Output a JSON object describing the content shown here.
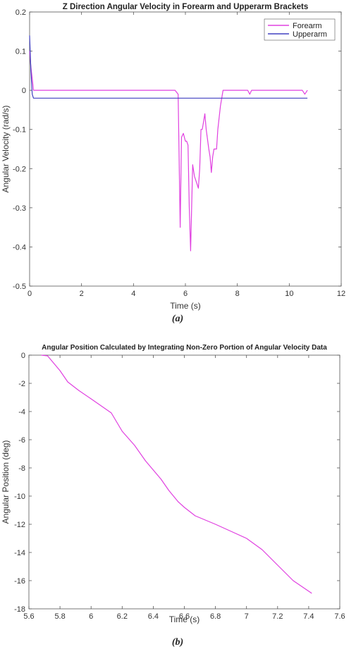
{
  "chart_data": [
    {
      "type": "line",
      "title": "Z Direction Angular Velocity in Forearm and Upperarm Brackets",
      "xlabel": "Time (s)",
      "ylabel": "Angular Velocity (rad/s)",
      "xlim": [
        0,
        12
      ],
      "ylim": [
        -0.5,
        0.2
      ],
      "xticks": [
        "0",
        "2",
        "4",
        "6",
        "8",
        "10",
        "12"
      ],
      "yticks": [
        "0.2",
        "0.1",
        "0",
        "-0.1",
        "-0.2",
        "-0.3",
        "-0.4",
        "-0.5"
      ],
      "legend": "top-right",
      "grid": false,
      "caption": "(a)",
      "series": [
        {
          "name": "Forearm",
          "color": "#e040e0",
          "x": [
            0,
            0.05,
            0.1,
            0.15,
            0.2,
            5.6,
            5.72,
            5.8,
            5.85,
            5.92,
            6.0,
            6.05,
            6.1,
            6.15,
            6.2,
            6.28,
            6.35,
            6.45,
            6.5,
            6.55,
            6.6,
            6.65,
            6.7,
            6.75,
            6.8,
            6.9,
            6.95,
            7.0,
            7.05,
            7.1,
            7.2,
            7.25,
            7.35,
            7.45,
            7.55,
            8.4,
            8.48,
            8.55,
            10.5,
            10.6,
            10.7
          ],
          "y": [
            0.1,
            0.06,
            0.03,
            0.0,
            0.0,
            0.0,
            -0.01,
            -0.35,
            -0.12,
            -0.11,
            -0.13,
            -0.13,
            -0.14,
            -0.3,
            -0.41,
            -0.19,
            -0.22,
            -0.24,
            -0.25,
            -0.2,
            -0.1,
            -0.1,
            -0.08,
            -0.06,
            -0.1,
            -0.15,
            -0.17,
            -0.21,
            -0.17,
            -0.15,
            -0.15,
            -0.1,
            -0.04,
            0.0,
            0.0,
            0.0,
            -0.01,
            0.0,
            0.0,
            -0.01,
            0.0
          ]
        },
        {
          "name": "Upperarm",
          "color": "#4040c0",
          "x": [
            0,
            0.05,
            0.1,
            0.15,
            10.7
          ],
          "y": [
            0.14,
            0.05,
            -0.01,
            -0.02,
            -0.02
          ]
        }
      ]
    },
    {
      "type": "line",
      "title": "Angular Position Calculated by Integrating Non-Zero Portion of Angular Velocity Data",
      "xlabel": "Time (s)",
      "ylabel": "Angular Position (deg)",
      "xlim": [
        5.6,
        7.6
      ],
      "ylim": [
        -18,
        0
      ],
      "xticks": [
        "5.6",
        "5.8",
        "6",
        "6.2",
        "6.4",
        "6.6",
        "6.8",
        "7",
        "7.2",
        "7.4",
        "7.6"
      ],
      "yticks": [
        "0",
        "-2",
        "-4",
        "-6",
        "-8",
        "-10",
        "-12",
        "-14",
        "-16",
        "-18"
      ],
      "grid": false,
      "caption": "(b)",
      "series": [
        {
          "color": "#e040e0",
          "x": [
            5.68,
            5.72,
            5.8,
            5.85,
            5.92,
            6.0,
            6.13,
            6.2,
            6.28,
            6.35,
            6.45,
            6.5,
            6.56,
            6.6,
            6.67,
            6.8,
            6.9,
            7.0,
            7.1,
            7.2,
            7.3,
            7.42
          ],
          "y": [
            0,
            -0.05,
            -1.1,
            -1.9,
            -2.5,
            -3.1,
            -4.1,
            -5.4,
            -6.4,
            -7.5,
            -8.8,
            -9.6,
            -10.4,
            -10.8,
            -11.4,
            -12.0,
            -12.5,
            -13.0,
            -13.8,
            -14.9,
            -16.0,
            -16.9
          ]
        }
      ]
    }
  ]
}
